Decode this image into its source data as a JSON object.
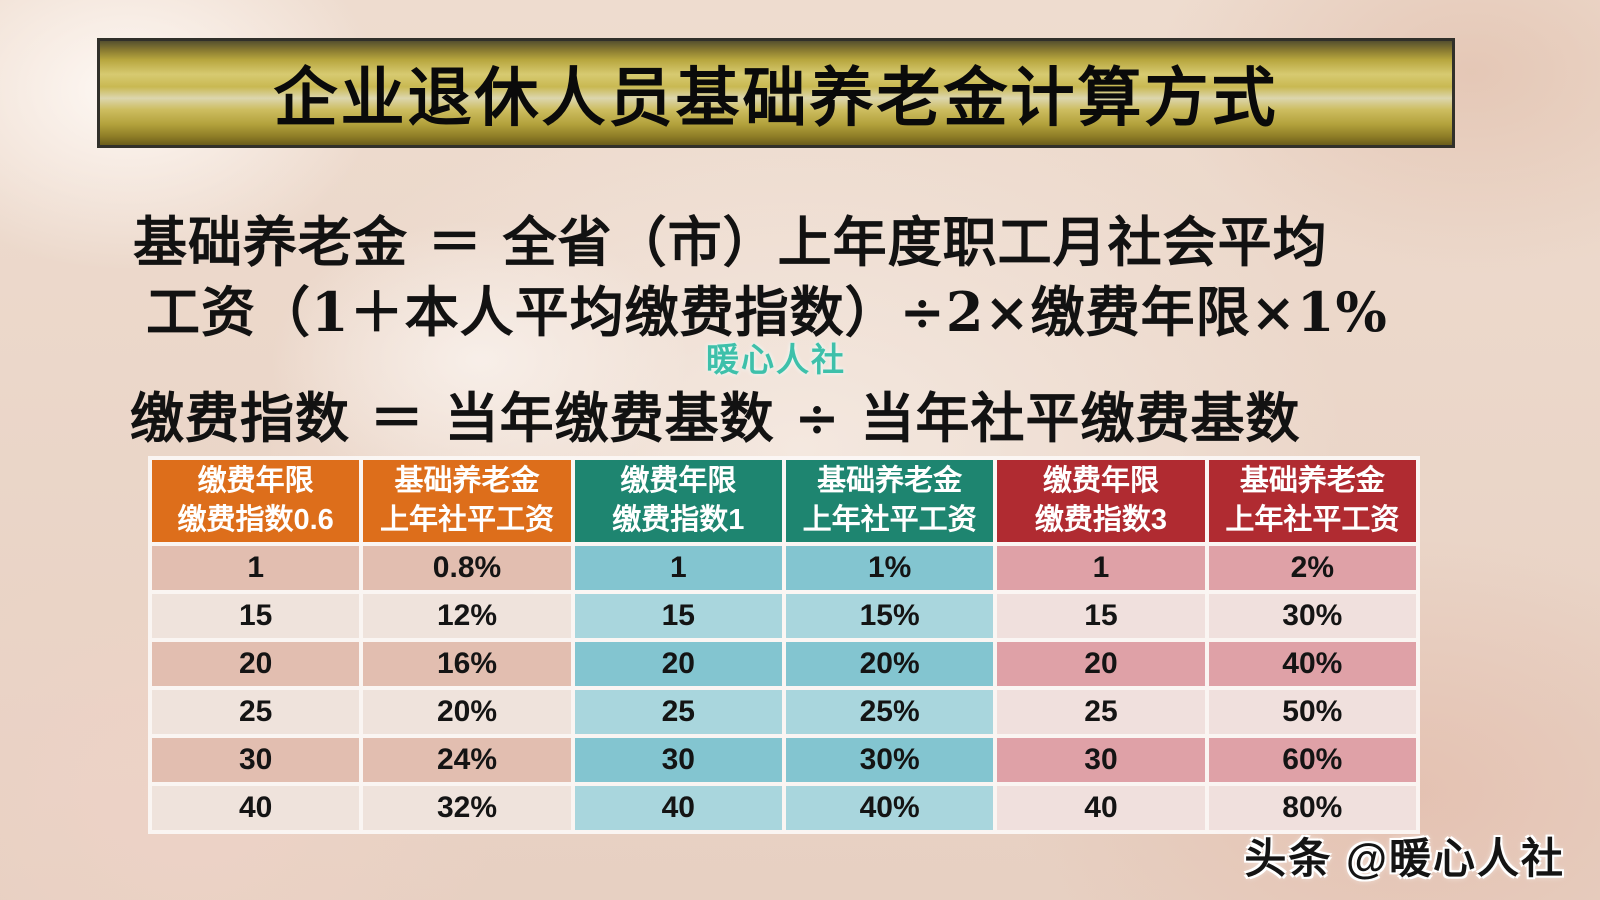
{
  "title": "企业退休人员基础养老金计算方式",
  "formulas": {
    "line1": "基础养老金 ＝ 全省（市）上年度职工月社会平均",
    "line2": "工资（1＋本人平均缴费指数）÷2×缴费年限×1%",
    "line3": "缴费指数 ＝ 当年缴费基数 ÷ 当年社平缴费基数"
  },
  "watermarks": {
    "center": "暖心人社",
    "bottom": "头条 @暖心人社"
  },
  "table": {
    "headers": [
      {
        "line1": "缴费年限",
        "line2": "缴费指数0.6",
        "color": "#DD6E1B"
      },
      {
        "line1": "基础养老金",
        "line2": "上年社平工资",
        "color": "#DD6E1B"
      },
      {
        "line1": "缴费年限",
        "line2": "缴费指数1",
        "color": "#1E8570"
      },
      {
        "line1": "基础养老金",
        "line2": "上年社平工资",
        "color": "#1E8570"
      },
      {
        "line1": "缴费年限",
        "line2": "缴费指数3",
        "color": "#B02B31"
      },
      {
        "line1": "基础养老金",
        "line2": "上年社平工资",
        "color": "#B02B31"
      }
    ],
    "rows": [
      [
        "1",
        "0.8%",
        "1",
        "1%",
        "1",
        "2%"
      ],
      [
        "15",
        "12%",
        "15",
        "15%",
        "15",
        "30%"
      ],
      [
        "20",
        "16%",
        "20",
        "20%",
        "20",
        "40%"
      ],
      [
        "25",
        "20%",
        "25",
        "25%",
        "25",
        "50%"
      ],
      [
        "30",
        "24%",
        "30",
        "30%",
        "30",
        "60%"
      ],
      [
        "40",
        "32%",
        "40",
        "40%",
        "40",
        "80%"
      ]
    ]
  },
  "colors": {
    "header": {
      "orange": "#DD6E1B",
      "teal": "#1E8570",
      "red": "#B02B31"
    },
    "bands": {
      "a": {
        "odd": "#E2BEB0",
        "even": "#EFE3DC"
      },
      "b": {
        "odd": "#83C5D0",
        "even": "#A9D6DD"
      },
      "c": {
        "odd": "#DFA1A7",
        "even": "#F0E0DD"
      }
    },
    "banner_gold": "#C9B952",
    "watermark_teal": "#3EC0AA"
  }
}
